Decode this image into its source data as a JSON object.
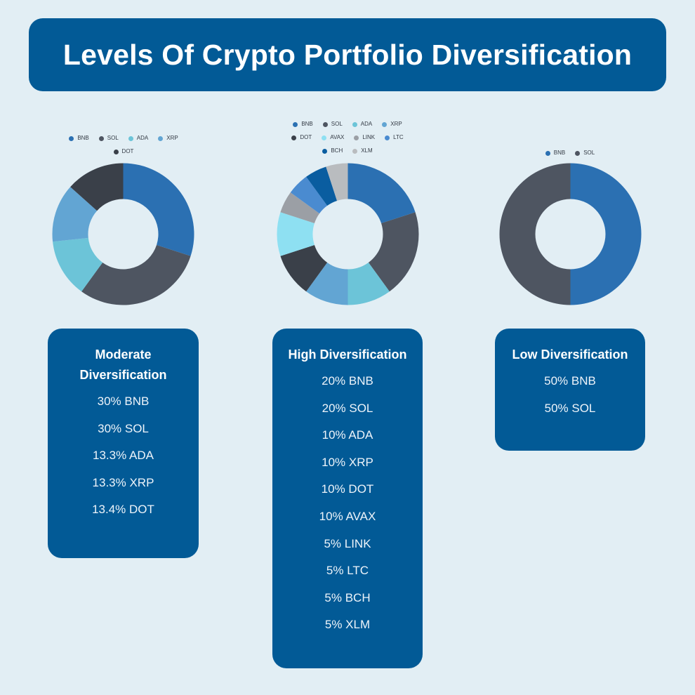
{
  "title": "Levels Of Crypto Portfolio Diversification",
  "colors": {
    "BNB": "#2b70b2",
    "SOL": "#4e5561",
    "ADA": "#6cc4d8",
    "XRP": "#62a5d3",
    "DOT": "#3a4049",
    "AVAX": "#8ee0f2",
    "LINK": "#9b9fa5",
    "LTC": "#4a8bd0",
    "BCH": "#0a5da0",
    "XLM": "#b9bcbf"
  },
  "cards": {
    "moderate": {
      "title_line1": "Moderate",
      "title_line2": "Diversification",
      "items": [
        "30% BNB",
        "30% SOL",
        "13.3% ADA",
        "13.3% XRP",
        "13.4% DOT"
      ]
    },
    "high": {
      "title": "High Diversification",
      "items": [
        "20% BNB",
        "20% SOL",
        "10% ADA",
        "10% XRP",
        "10% DOT",
        "10% AVAX",
        "5% LINK",
        "5% LTC",
        "5% BCH",
        "5% XLM"
      ]
    },
    "low": {
      "title": "Low Diversification",
      "items": [
        "50% BNB",
        "50% SOL"
      ]
    }
  },
  "chart_data": [
    {
      "type": "pie",
      "donut": true,
      "categories": [
        "BNB",
        "SOL",
        "ADA",
        "XRP",
        "DOT"
      ],
      "values": [
        30,
        30,
        13.3,
        13.3,
        13.4
      ],
      "legend": "top"
    },
    {
      "type": "pie",
      "donut": true,
      "categories": [
        "BNB",
        "SOL",
        "ADA",
        "XRP",
        "DOT",
        "AVAX",
        "LINK",
        "LTC",
        "BCH",
        "XLM"
      ],
      "values": [
        20,
        20,
        10,
        10,
        10,
        10,
        5,
        5,
        5,
        5
      ],
      "legend": "top"
    },
    {
      "type": "pie",
      "donut": true,
      "categories": [
        "BNB",
        "SOL"
      ],
      "values": [
        50,
        50
      ],
      "legend": "top"
    }
  ]
}
